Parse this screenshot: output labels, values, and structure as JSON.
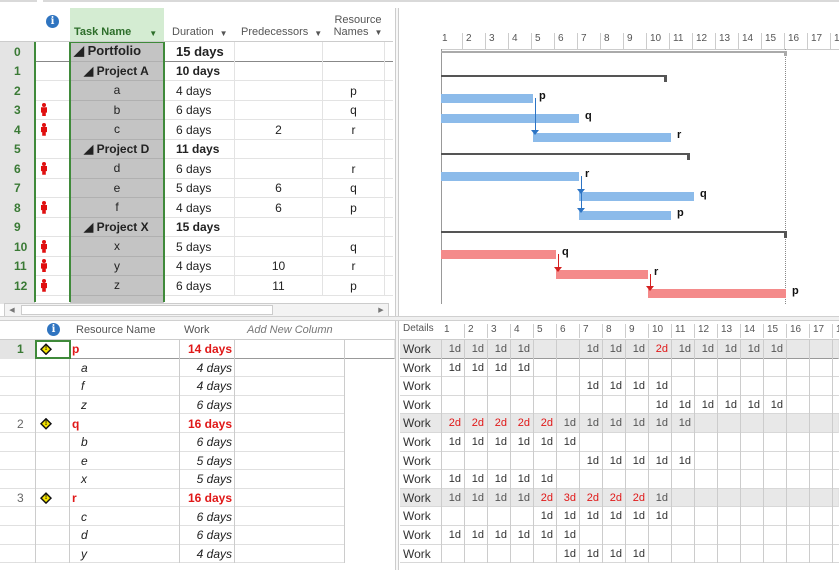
{
  "task_sheet": {
    "headers": {
      "info_icon": "i",
      "task_name": "Task Name",
      "duration": "Duration",
      "predecessors": "Predecessors",
      "resource_names_line1": "Resource",
      "resource_names_line2": "Names",
      "dropdown_glyph": "▼"
    },
    "rows": [
      {
        "id": "0",
        "indicator": "",
        "name": "◢ Portfolio",
        "duration": "15 days",
        "predecessors": "",
        "resources": "",
        "summary": true,
        "level": 0
      },
      {
        "id": "1",
        "indicator": "",
        "name": "◢ Project A",
        "duration": "10 days",
        "predecessors": "",
        "resources": "",
        "summary": true,
        "level": 1
      },
      {
        "id": "2",
        "indicator": "",
        "name": "a",
        "duration": "4 days",
        "predecessors": "",
        "resources": "p"
      },
      {
        "id": "3",
        "indicator": "overallocated",
        "name": "b",
        "duration": "6 days",
        "predecessors": "",
        "resources": "q"
      },
      {
        "id": "4",
        "indicator": "overallocated",
        "name": "c",
        "duration": "6 days",
        "predecessors": "2",
        "resources": "r"
      },
      {
        "id": "5",
        "indicator": "",
        "name": "◢ Project D",
        "duration": "11 days",
        "predecessors": "",
        "resources": "",
        "summary": true,
        "level": 1
      },
      {
        "id": "6",
        "indicator": "overallocated",
        "name": "d",
        "duration": "6 days",
        "predecessors": "",
        "resources": "r"
      },
      {
        "id": "7",
        "indicator": "",
        "name": "e",
        "duration": "5 days",
        "predecessors": "6",
        "resources": "q"
      },
      {
        "id": "8",
        "indicator": "overallocated",
        "name": "f",
        "duration": "4 days",
        "predecessors": "6",
        "resources": "p"
      },
      {
        "id": "9",
        "indicator": "",
        "name": "◢ Project X",
        "duration": "15 days",
        "predecessors": "",
        "resources": "",
        "summary": true,
        "level": 1
      },
      {
        "id": "10",
        "indicator": "overallocated",
        "name": "x",
        "duration": "5 days",
        "predecessors": "",
        "resources": "q"
      },
      {
        "id": "11",
        "indicator": "overallocated",
        "name": "y",
        "duration": "4 days",
        "predecessors": "10",
        "resources": "r"
      },
      {
        "id": "12",
        "indicator": "overallocated",
        "name": "z",
        "duration": "6 days",
        "predecessors": "11",
        "resources": "p"
      }
    ],
    "scroll_left": "◀",
    "scroll_right": "▶"
  },
  "gantt": {
    "timescale": [
      "1",
      "2",
      "3",
      "4",
      "5",
      "6",
      "7",
      "8",
      "9",
      "10",
      "11",
      "12",
      "13",
      "14",
      "15",
      "16",
      "17",
      "18"
    ],
    "colors": {
      "task_bar": "#8cbbea",
      "critical_bar": "#f48a8a",
      "summary": "#555555",
      "link_blue": "#2d74c4",
      "link_red": "#d42020"
    },
    "summaries": [
      {
        "row": 0,
        "start": 1,
        "end": 16,
        "style": "portfolio"
      },
      {
        "row": 1,
        "start": 1,
        "end": 10.8
      },
      {
        "row": 5,
        "start": 1,
        "end": 11.8
      },
      {
        "row": 9,
        "start": 1,
        "end": 16
      }
    ],
    "bars": [
      {
        "row": 2,
        "start": 1,
        "end": 5,
        "label": "p",
        "color": "blue"
      },
      {
        "row": 3,
        "start": 1,
        "end": 7,
        "label": "q",
        "color": "blue"
      },
      {
        "row": 4,
        "start": 5,
        "end": 11,
        "label": "r",
        "color": "blue"
      },
      {
        "row": 6,
        "start": 1,
        "end": 7,
        "label": "r",
        "color": "blue"
      },
      {
        "row": 7,
        "start": 7,
        "end": 12,
        "label": "q",
        "color": "blue"
      },
      {
        "row": 8,
        "start": 7,
        "end": 11,
        "label": "p",
        "color": "blue"
      },
      {
        "row": 10,
        "start": 1,
        "end": 6,
        "label": "q",
        "color": "red"
      },
      {
        "row": 11,
        "start": 6,
        "end": 10,
        "label": "r",
        "color": "red"
      },
      {
        "row": 12,
        "start": 10,
        "end": 16,
        "label": "p",
        "color": "red"
      }
    ],
    "links": [
      {
        "from_row": 2,
        "to_row": 4,
        "day": 5,
        "color": "blue"
      },
      {
        "from_row": 6,
        "to_row": 7,
        "day": 7,
        "color": "blue"
      },
      {
        "from_row": 6,
        "to_row": 8,
        "day": 7,
        "color": "blue"
      },
      {
        "from_row": 10,
        "to_row": 11,
        "day": 6,
        "color": "red"
      },
      {
        "from_row": 11,
        "to_row": 12,
        "day": 10,
        "color": "red"
      }
    ]
  },
  "resource_usage": {
    "headers": {
      "info_icon": "i",
      "resource_name": "Resource Name",
      "work": "Work",
      "add_new_column": "Add New Column"
    },
    "rows": [
      {
        "id": "1",
        "warn": true,
        "name": "p",
        "work": "14 days",
        "type": "resource",
        "selected": true
      },
      {
        "id": "",
        "warn": false,
        "name": "a",
        "work": "4 days",
        "type": "assignment"
      },
      {
        "id": "",
        "warn": false,
        "name": "f",
        "work": "4 days",
        "type": "assignment"
      },
      {
        "id": "",
        "warn": false,
        "name": "z",
        "work": "6 days",
        "type": "assignment"
      },
      {
        "id": "2",
        "warn": true,
        "name": "q",
        "work": "16 days",
        "type": "resource"
      },
      {
        "id": "",
        "warn": false,
        "name": "b",
        "work": "6 days",
        "type": "assignment"
      },
      {
        "id": "",
        "warn": false,
        "name": "e",
        "work": "5 days",
        "type": "assignment"
      },
      {
        "id": "",
        "warn": false,
        "name": "x",
        "work": "5 days",
        "type": "assignment"
      },
      {
        "id": "3",
        "warn": true,
        "name": "r",
        "work": "16 days",
        "type": "resource"
      },
      {
        "id": "",
        "warn": false,
        "name": "c",
        "work": "6 days",
        "type": "assignment"
      },
      {
        "id": "",
        "warn": false,
        "name": "d",
        "work": "6 days",
        "type": "assignment"
      },
      {
        "id": "",
        "warn": false,
        "name": "y",
        "work": "4 days",
        "type": "assignment"
      }
    ]
  },
  "timephased": {
    "details_label": "Details",
    "row_label": "Work",
    "days": [
      "1",
      "2",
      "3",
      "4",
      "5",
      "6",
      "7",
      "8",
      "9",
      "10",
      "11",
      "12",
      "13",
      "14",
      "15",
      "16",
      "17",
      "18"
    ],
    "rows": [
      {
        "type": "resource",
        "cells": [
          "1d",
          "1d",
          "1d",
          "1d",
          "",
          "",
          "1d",
          "1d",
          "1d",
          "2d",
          "1d",
          "1d",
          "1d",
          "1d",
          "1d",
          "",
          "",
          ""
        ]
      },
      {
        "type": "assignment",
        "cells": [
          "1d",
          "1d",
          "1d",
          "1d",
          "",
          "",
          "",
          "",
          "",
          "",
          "",
          "",
          "",
          "",
          "",
          "",
          "",
          ""
        ]
      },
      {
        "type": "assignment",
        "cells": [
          "",
          "",
          "",
          "",
          "",
          "",
          "1d",
          "1d",
          "1d",
          "1d",
          "",
          "",
          "",
          "",
          "",
          "",
          "",
          ""
        ]
      },
      {
        "type": "assignment",
        "cells": [
          "",
          "",
          "",
          "",
          "",
          "",
          "",
          "",
          "",
          "1d",
          "1d",
          "1d",
          "1d",
          "1d",
          "1d",
          "",
          "",
          ""
        ]
      },
      {
        "type": "resource",
        "cells": [
          "2d",
          "2d",
          "2d",
          "2d",
          "2d",
          "1d",
          "1d",
          "1d",
          "1d",
          "1d",
          "1d",
          "",
          "",
          "",
          "",
          "",
          "",
          ""
        ]
      },
      {
        "type": "assignment",
        "cells": [
          "1d",
          "1d",
          "1d",
          "1d",
          "1d",
          "1d",
          "",
          "",
          "",
          "",
          "",
          "",
          "",
          "",
          "",
          "",
          "",
          ""
        ]
      },
      {
        "type": "assignment",
        "cells": [
          "",
          "",
          "",
          "",
          "",
          "",
          "1d",
          "1d",
          "1d",
          "1d",
          "1d",
          "",
          "",
          "",
          "",
          "",
          "",
          ""
        ]
      },
      {
        "type": "assignment",
        "cells": [
          "1d",
          "1d",
          "1d",
          "1d",
          "1d",
          "",
          "",
          "",
          "",
          "",
          "",
          "",
          "",
          "",
          "",
          "",
          "",
          ""
        ]
      },
      {
        "type": "resource",
        "cells": [
          "1d",
          "1d",
          "1d",
          "1d",
          "2d",
          "3d",
          "2d",
          "2d",
          "2d",
          "1d",
          "",
          "",
          "",
          "",
          "",
          "",
          "",
          ""
        ]
      },
      {
        "type": "assignment",
        "cells": [
          "",
          "",
          "",
          "",
          "1d",
          "1d",
          "1d",
          "1d",
          "1d",
          "1d",
          "",
          "",
          "",
          "",
          "",
          "",
          "",
          ""
        ]
      },
      {
        "type": "assignment",
        "cells": [
          "1d",
          "1d",
          "1d",
          "1d",
          "1d",
          "1d",
          "",
          "",
          "",
          "",
          "",
          "",
          "",
          "",
          "",
          "",
          "",
          ""
        ]
      },
      {
        "type": "assignment",
        "cells": [
          "",
          "",
          "",
          "",
          "",
          "1d",
          "1d",
          "1d",
          "1d",
          "",
          "",
          "",
          "",
          "",
          "",
          "",
          "",
          ""
        ]
      }
    ]
  }
}
